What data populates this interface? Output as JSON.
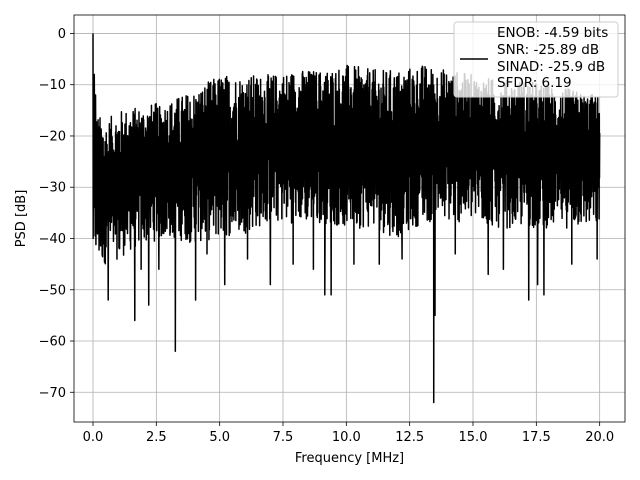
{
  "chart_data": {
    "type": "line",
    "title": "",
    "xlabel": "Frequency [MHz]",
    "ylabel": "PSD [dB]",
    "xlim": [
      -0.75,
      21.0
    ],
    "ylim": [
      -75.8,
      3.6
    ],
    "x_ticks": [
      0.0,
      2.5,
      5.0,
      7.5,
      10.0,
      12.5,
      15.0,
      17.5,
      20.0
    ],
    "x_tick_labels": [
      "0.0",
      "2.5",
      "5.0",
      "7.5",
      "10.0",
      "12.5",
      "15.0",
      "17.5",
      "20.0"
    ],
    "y_ticks": [
      0,
      -10,
      -20,
      -30,
      -40,
      -50,
      -60,
      -70
    ],
    "y_tick_labels": [
      "0",
      "−10",
      "−20",
      "−30",
      "−40",
      "−50",
      "−60",
      "−70"
    ],
    "grid": true,
    "legend_position": "top-right",
    "line_color": "#000000",
    "series": [
      {
        "legend_lines": [
          "ENOB: -4.59 bits",
          "SNR: -25.89 dB",
          "SINAD: -25.9 dB",
          "SFDR: 6.19"
        ],
        "x_range": [
          0.0,
          20.0
        ],
        "envelope_x": [
          0.0,
          0.5,
          1.0,
          2.0,
          3.0,
          4.0,
          5.0,
          6.0,
          7.0,
          8.0,
          9.0,
          10.0,
          11.0,
          12.0,
          13.0,
          14.0,
          15.0,
          16.0,
          17.0,
          18.0,
          19.0,
          20.0
        ],
        "envelope_top": [
          -15,
          -17,
          -15,
          -14,
          -13,
          -11,
          -8,
          -8,
          -8,
          -7,
          -7,
          -6,
          -7,
          -7,
          -6,
          -7,
          -8,
          -9,
          -9,
          -10,
          -11,
          -12
        ],
        "envelope_bottom": [
          -45,
          -45,
          -44,
          -41,
          -40,
          -41,
          -40,
          -39,
          -37,
          -37,
          -37,
          -38,
          -38,
          -40,
          -37,
          -37,
          -37,
          -38,
          -38,
          -38,
          -38,
          -38
        ],
        "peaks": [
          {
            "x": 0.0,
            "y": 0
          },
          {
            "x": 0.05,
            "y": -8
          },
          {
            "x": 0.1,
            "y": -12
          }
        ],
        "dips": [
          {
            "x": 0.6,
            "y": -52
          },
          {
            "x": 1.05,
            "y": -42
          },
          {
            "x": 1.65,
            "y": -56
          },
          {
            "x": 1.9,
            "y": -46
          },
          {
            "x": 2.2,
            "y": -53
          },
          {
            "x": 2.6,
            "y": -46
          },
          {
            "x": 3.25,
            "y": -62
          },
          {
            "x": 4.05,
            "y": -52
          },
          {
            "x": 4.5,
            "y": -43
          },
          {
            "x": 5.2,
            "y": -49
          },
          {
            "x": 6.1,
            "y": -44
          },
          {
            "x": 7.0,
            "y": -49
          },
          {
            "x": 7.9,
            "y": -45
          },
          {
            "x": 8.7,
            "y": -46
          },
          {
            "x": 9.15,
            "y": -51
          },
          {
            "x": 9.4,
            "y": -51
          },
          {
            "x": 10.3,
            "y": -45
          },
          {
            "x": 11.3,
            "y": -45
          },
          {
            "x": 12.2,
            "y": -44
          },
          {
            "x": 13.45,
            "y": -72
          },
          {
            "x": 13.5,
            "y": -55
          },
          {
            "x": 14.3,
            "y": -43
          },
          {
            "x": 15.6,
            "y": -47
          },
          {
            "x": 16.2,
            "y": -46
          },
          {
            "x": 17.2,
            "y": -52
          },
          {
            "x": 17.55,
            "y": -49
          },
          {
            "x": 17.8,
            "y": -51
          },
          {
            "x": 18.9,
            "y": -45
          },
          {
            "x": 19.9,
            "y": -44
          }
        ]
      }
    ]
  }
}
